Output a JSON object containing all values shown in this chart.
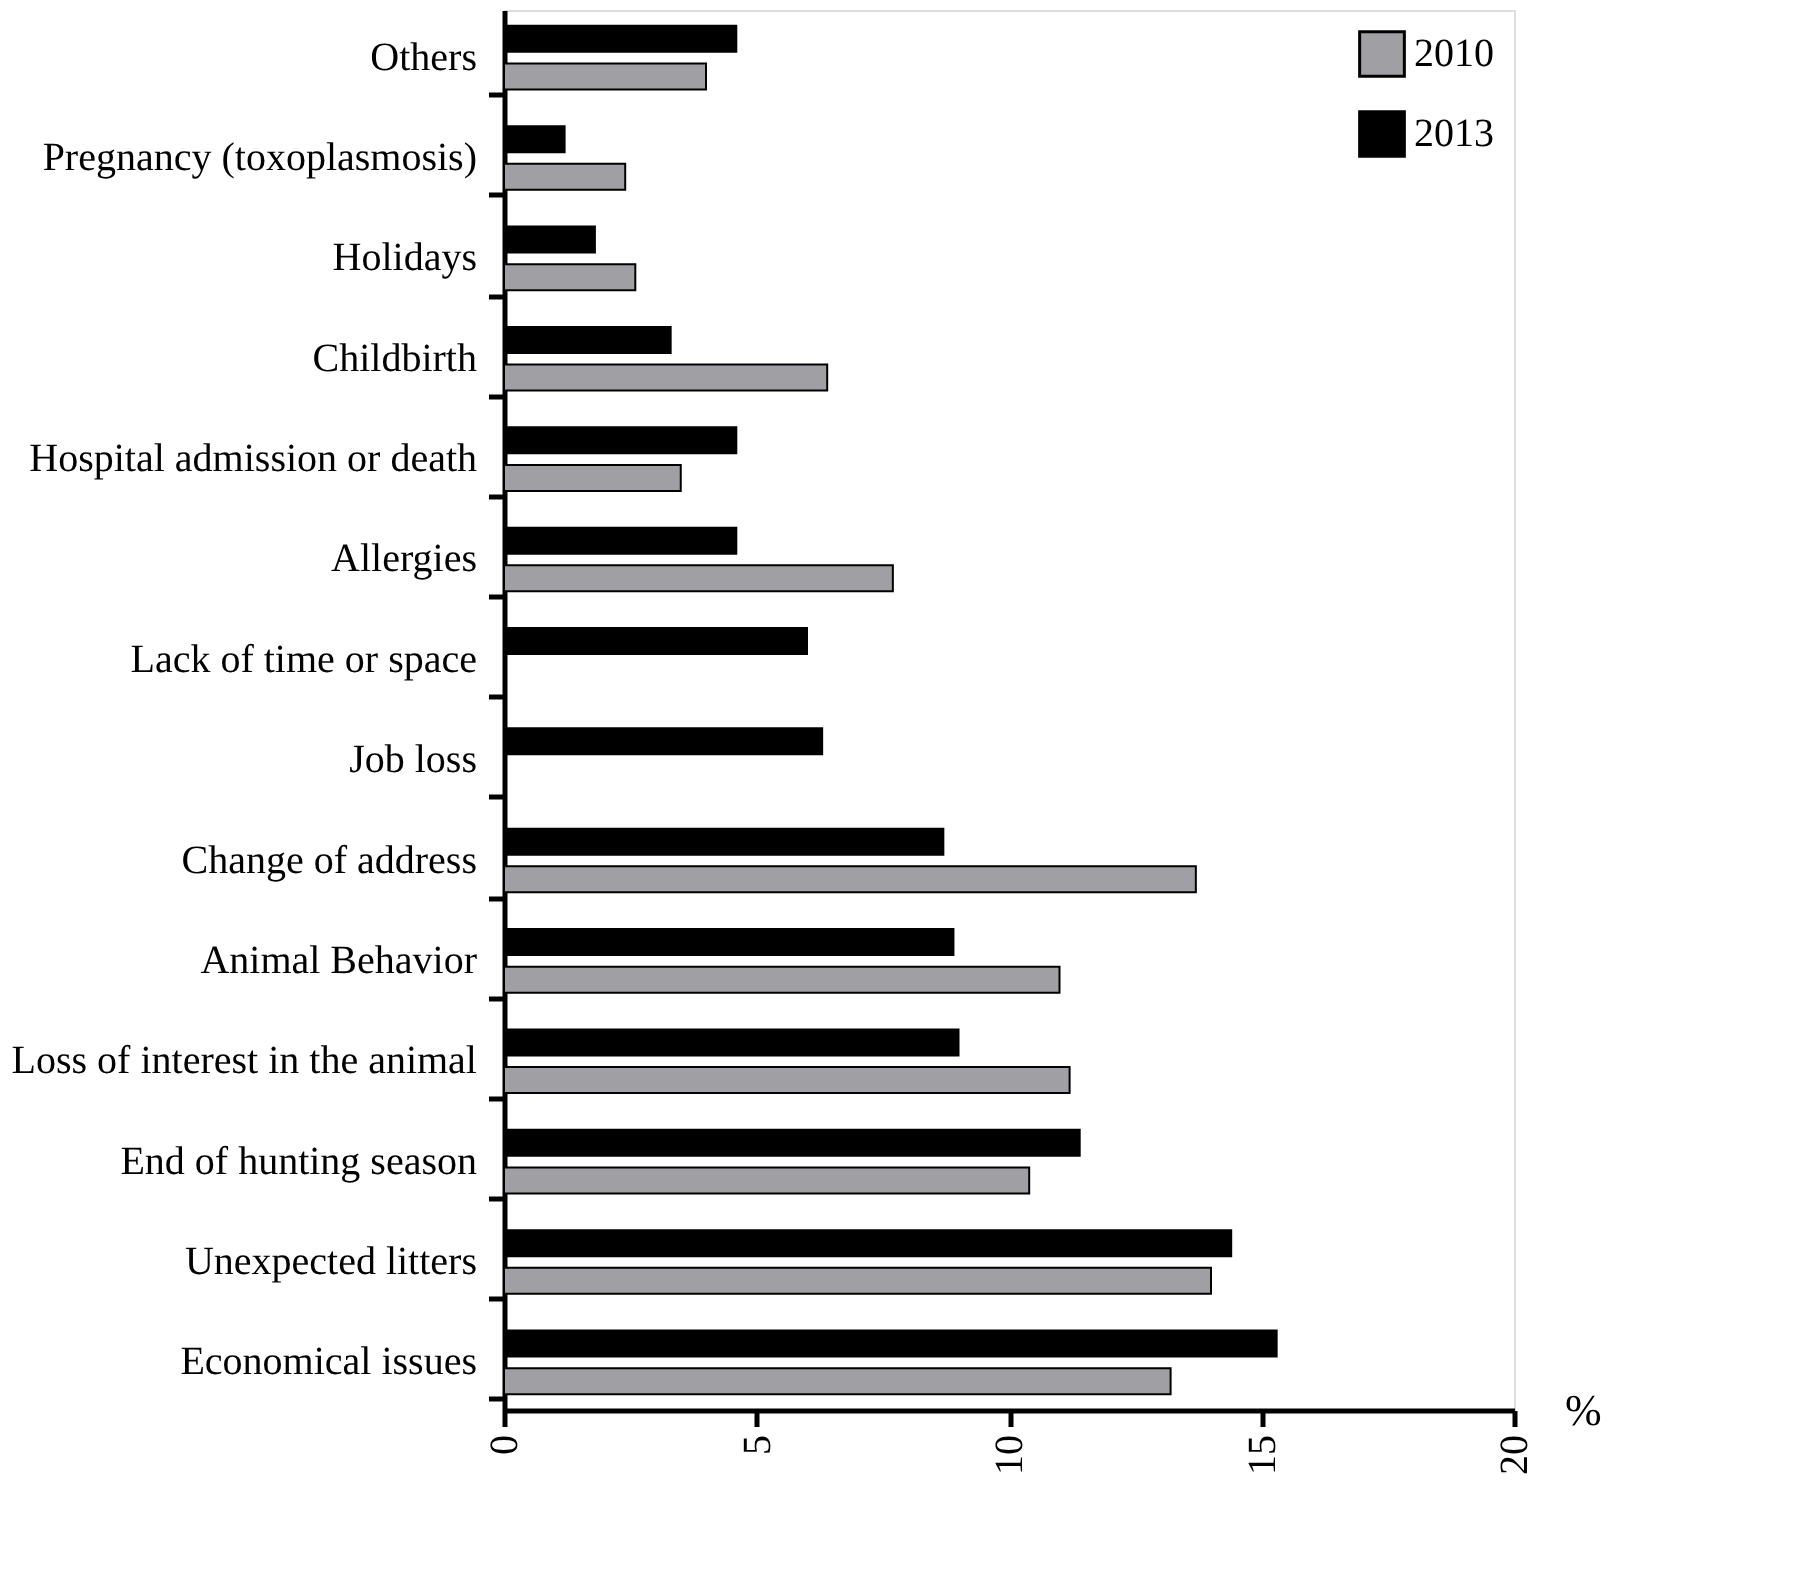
{
  "chart_data": {
    "type": "bar",
    "orientation": "horizontal",
    "xlabel": "%",
    "categories": [
      "Others",
      "Pregnancy (toxoplasmosis)",
      "Holidays",
      "Childbirth",
      "Hospital admission or death",
      "Allergies",
      "Lack of time or space",
      "Job loss",
      "Change of address",
      "Animal Behavior",
      "Loss of interest in the animal",
      "End of hunting season",
      "Unexpected litters",
      "Economical issues"
    ],
    "series": [
      {
        "name": "2010",
        "color": "#a0a0a4",
        "values": [
          4.0,
          2.4,
          2.6,
          6.4,
          3.5,
          7.7,
          null,
          null,
          13.7,
          11.0,
          11.2,
          10.4,
          14.0,
          13.2
        ]
      },
      {
        "name": "2013",
        "color": "#000000",
        "values": [
          4.6,
          1.2,
          1.8,
          3.3,
          4.6,
          4.6,
          6.0,
          6.3,
          8.7,
          8.9,
          9.0,
          11.4,
          14.4,
          15.3
        ]
      }
    ],
    "xlim": [
      0,
      20
    ],
    "xticks": [
      0,
      5,
      10,
      15,
      20
    ],
    "grid": false,
    "legend": "top right"
  }
}
